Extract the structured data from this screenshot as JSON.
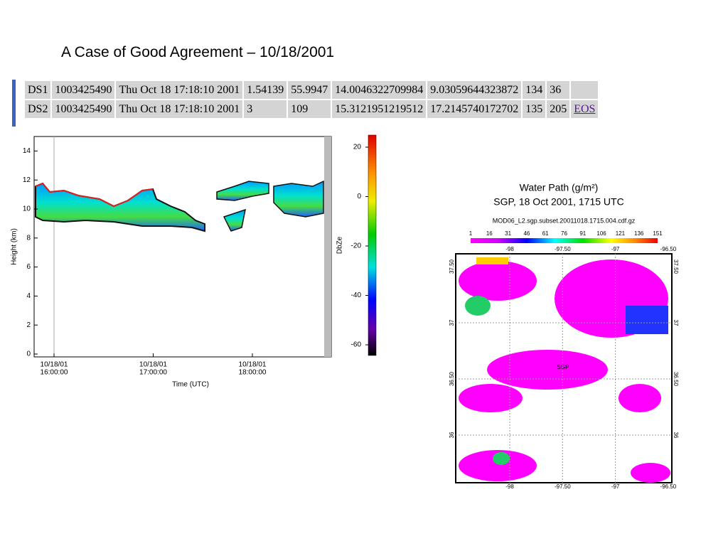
{
  "title": "A Case of Good Agreement – 10/18/2001",
  "table": {
    "rows": [
      [
        "DS1",
        "1003425490",
        "Thu Oct 18 17:18:10 2001",
        "1.54139",
        "55.9947",
        "14.0046322709984",
        "9.03059644323872",
        "134",
        "36"
      ],
      [
        "DS2",
        "1003425490",
        "Thu Oct 18 17:18:10 2001",
        "3",
        "109",
        "15.3121951219512",
        "17.2145740172702",
        "135",
        "205",
        "EOS"
      ]
    ]
  },
  "radar": {
    "y_label": "Height (km)",
    "yticks": [
      "0",
      "2",
      "4",
      "6",
      "8",
      "10",
      "12",
      "14"
    ],
    "xticks": [
      {
        "date": "10/18/01",
        "time": "16:00:00"
      },
      {
        "date": "10/18/01",
        "time": "17:00:00"
      },
      {
        "date": "10/18/01",
        "time": "18:00:00"
      }
    ],
    "x_label": "Time (UTC)",
    "colorbar_label": "DbZe",
    "colorbar_ticks": [
      "20",
      "0",
      "-20",
      "-40",
      "-60"
    ]
  },
  "map": {
    "title": "Water Path (g/m²)",
    "subtitle": "SGP, 18 Oct 2001, 1715 UTC",
    "filename": "MOD06_L2.sgp.subset.20011018.1715.004.cdf.gz",
    "colorbar_ticks": [
      "1",
      "16",
      "31",
      "46",
      "61",
      "76",
      "91",
      "106",
      "121",
      "136",
      "151"
    ],
    "lon_ticks": [
      "-98",
      "-97.50",
      "-97",
      "-96.50"
    ],
    "lat_ticks": [
      "37.50",
      "37",
      "36.50",
      "36"
    ],
    "site": "SGP"
  }
}
